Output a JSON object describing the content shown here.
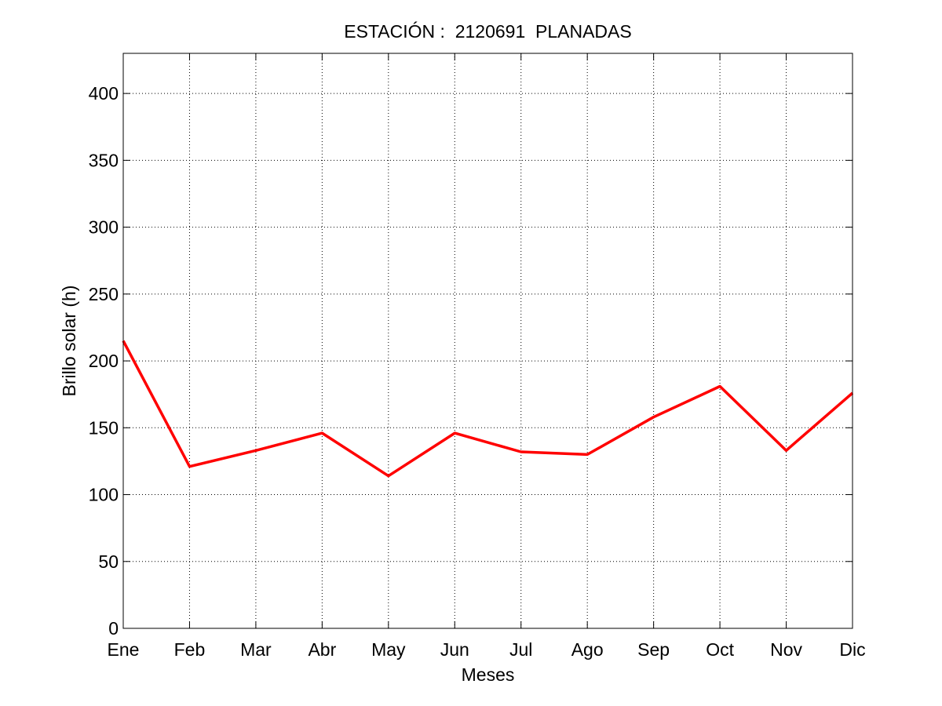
{
  "chart_data": {
    "type": "line",
    "title": "ESTACIÓN :  2120691  PLANADAS",
    "xlabel": "Meses",
    "ylabel": "Brillo solar (h)",
    "categories": [
      "Ene",
      "Feb",
      "Mar",
      "Abr",
      "May",
      "Jun",
      "Jul",
      "Ago",
      "Sep",
      "Oct",
      "Nov",
      "Dic"
    ],
    "series": [
      {
        "values": [
          215,
          121,
          133,
          146,
          114,
          146,
          132,
          130,
          158,
          181,
          133,
          176
        ],
        "color": "#ff0000"
      }
    ],
    "ylim": [
      0,
      430
    ],
    "yticks": [
      0,
      50,
      100,
      150,
      200,
      250,
      300,
      350,
      400
    ],
    "grid": true,
    "legend": "none"
  }
}
